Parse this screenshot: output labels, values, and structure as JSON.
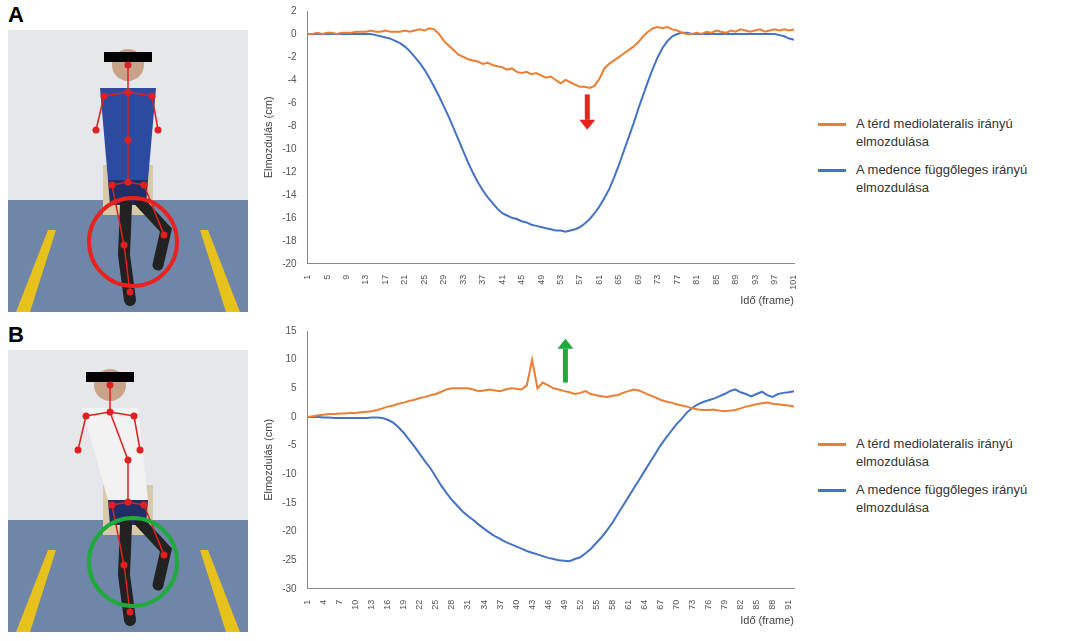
{
  "panels": [
    "A",
    "B"
  ],
  "chart_data": [
    {
      "type": "line",
      "x_label": "Idő (frame)",
      "y_label": "Elmozdulás (cm)",
      "x": [
        1,
        2,
        3,
        4,
        5,
        6,
        7,
        8,
        9,
        10,
        11,
        12,
        13,
        14,
        15,
        16,
        17,
        18,
        19,
        20,
        21,
        22,
        23,
        24,
        25,
        26,
        27,
        28,
        29,
        30,
        31,
        32,
        33,
        34,
        35,
        36,
        37,
        38,
        39,
        40,
        41,
        42,
        43,
        44,
        45,
        46,
        47,
        48,
        49,
        50,
        51,
        52,
        53,
        54,
        55,
        56,
        57,
        58,
        59,
        60,
        61,
        62,
        63,
        64,
        65,
        66,
        67,
        68,
        69,
        70,
        71,
        72,
        73,
        74,
        75,
        76,
        77,
        78,
        79,
        80,
        81,
        82,
        83,
        84,
        85,
        86,
        87,
        88,
        89,
        90,
        91,
        92,
        93,
        94,
        95,
        96,
        97,
        98,
        99,
        100,
        101
      ],
      "xlim": [
        1,
        101
      ],
      "xticks": [
        1,
        5,
        9,
        13,
        17,
        21,
        25,
        29,
        33,
        37,
        41,
        45,
        49,
        53,
        57,
        61,
        65,
        69,
        73,
        77,
        81,
        85,
        89,
        93,
        97,
        101
      ],
      "ylim": [
        -20,
        2
      ],
      "yticks": [
        -20,
        -18,
        -16,
        -14,
        -12,
        -10,
        -8,
        -6,
        -4,
        -2,
        0,
        2
      ],
      "grid": false,
      "legend": "right",
      "series": [
        {
          "name": "A térd mediolateralis irányú elmozdulása",
          "color": "#ed7d31",
          "values": [
            0,
            0,
            0.1,
            0,
            0.1,
            0.1,
            0,
            0.1,
            0.1,
            0.1,
            0.2,
            0.2,
            0.2,
            0.3,
            0.2,
            0.2,
            0.3,
            0.2,
            0.2,
            0.2,
            0.3,
            0.2,
            0.3,
            0.4,
            0.3,
            0.5,
            0.4,
            0,
            -0.6,
            -1,
            -1.4,
            -1.8,
            -2,
            -2.2,
            -2.3,
            -2.4,
            -2.6,
            -2.5,
            -2.7,
            -2.8,
            -2.9,
            -3.1,
            -3,
            -3.3,
            -3.4,
            -3.3,
            -3.5,
            -3.4,
            -3.6,
            -3.8,
            -3.7,
            -4,
            -4.3,
            -4,
            -4.2,
            -4.4,
            -4.6,
            -4.6,
            -4.7,
            -4.5,
            -3.9,
            -3,
            -2.6,
            -2.3,
            -2,
            -1.7,
            -1.4,
            -1.1,
            -0.7,
            -0.2,
            0.2,
            0.5,
            0.6,
            0.5,
            0.6,
            0.4,
            0.3,
            0.1,
            0,
            0,
            0.1,
            0,
            0.2,
            0.1,
            0.3,
            0.2,
            0.1,
            0.3,
            0.2,
            0.4,
            0.3,
            0.2,
            0.3,
            0.4,
            0.2,
            0.3,
            0.4,
            0.3,
            0.4,
            0.3,
            0.4
          ]
        },
        {
          "name": "A medence függőleges irányú elmozdulása",
          "color": "#4472c4",
          "values": [
            0,
            0,
            0,
            0,
            0,
            0,
            0,
            0,
            0,
            0,
            0,
            0,
            0,
            0,
            -0.1,
            -0.2,
            -0.3,
            -0.4,
            -0.6,
            -0.8,
            -1.1,
            -1.5,
            -2,
            -2.5,
            -3.1,
            -3.8,
            -4.6,
            -5.4,
            -6.3,
            -7.2,
            -8.2,
            -9.2,
            -10.2,
            -11.2,
            -12.1,
            -12.9,
            -13.6,
            -14.2,
            -14.7,
            -15.2,
            -15.6,
            -15.8,
            -16,
            -16.1,
            -16.3,
            -16.4,
            -16.6,
            -16.7,
            -16.8,
            -16.9,
            -17,
            -17.1,
            -17.1,
            -17.2,
            -17.1,
            -17,
            -16.8,
            -16.5,
            -16.1,
            -15.6,
            -15,
            -14.3,
            -13.5,
            -12.5,
            -11.4,
            -10.2,
            -9,
            -7.8,
            -6.5,
            -5.3,
            -4.1,
            -3,
            -2,
            -1.2,
            -0.6,
            -0.2,
            0,
            0.1,
            0.1,
            0,
            0,
            0,
            0,
            0,
            0,
            0,
            0,
            0,
            0,
            0,
            0,
            0,
            0,
            0,
            0,
            0,
            0,
            -0.1,
            -0.2,
            -0.4,
            -0.5
          ]
        }
      ]
    },
    {
      "type": "line",
      "x_label": "Idő (frame)",
      "y_label": "Elmozdulás (cm)",
      "x": [
        1,
        2,
        3,
        4,
        5,
        6,
        7,
        8,
        9,
        10,
        11,
        12,
        13,
        14,
        15,
        16,
        17,
        18,
        19,
        20,
        21,
        22,
        23,
        24,
        25,
        26,
        27,
        28,
        29,
        30,
        31,
        32,
        33,
        34,
        35,
        36,
        37,
        38,
        39,
        40,
        41,
        42,
        43,
        44,
        45,
        46,
        47,
        48,
        49,
        50,
        51,
        52,
        53,
        54,
        55,
        56,
        57,
        58,
        59,
        60,
        61,
        62,
        63,
        64,
        65,
        66,
        67,
        68,
        69,
        70,
        71,
        72,
        73,
        74,
        75,
        76,
        77,
        78,
        79,
        80,
        81,
        82,
        83,
        84,
        85,
        86,
        87,
        88,
        89,
        90,
        91,
        92
      ],
      "xlim": [
        1,
        92
      ],
      "xticks": [
        1,
        4,
        7,
        10,
        13,
        16,
        19,
        22,
        25,
        28,
        31,
        34,
        37,
        40,
        43,
        46,
        49,
        52,
        55,
        58,
        61,
        64,
        67,
        70,
        73,
        76,
        79,
        82,
        85,
        88,
        91
      ],
      "ylim": [
        -30,
        15
      ],
      "yticks": [
        -30,
        -25,
        -20,
        -15,
        -10,
        -5,
        0,
        5,
        10,
        15
      ],
      "grid": false,
      "legend": "right",
      "series": [
        {
          "name": "A térd mediolateralis irányú elmozdulása",
          "color": "#ed7d31",
          "values": [
            0,
            0.1,
            0.3,
            0.4,
            0.5,
            0.5,
            0.6,
            0.6,
            0.7,
            0.7,
            0.8,
            0.9,
            1,
            1.2,
            1.5,
            1.8,
            2,
            2.3,
            2.5,
            2.8,
            3,
            3.3,
            3.5,
            3.8,
            4,
            4.4,
            4.8,
            5,
            5,
            5,
            5,
            4.8,
            4.5,
            4.6,
            4.8,
            4.6,
            4.5,
            4.8,
            5,
            4.9,
            4.8,
            5.5,
            10,
            5,
            6,
            5.5,
            5,
            4.8,
            4.5,
            4.3,
            4,
            4.2,
            4.5,
            4,
            3.8,
            3.6,
            3.5,
            3.7,
            3.8,
            4.2,
            4.5,
            4.8,
            4.6,
            4.2,
            3.8,
            3.4,
            3,
            2.7,
            2.5,
            2.2,
            2,
            1.8,
            1.5,
            1.3,
            1.2,
            1.2,
            1.3,
            1.1,
            1,
            1.1,
            1.2,
            1.5,
            1.8,
            2,
            2.2,
            2.4,
            2.5,
            2.3,
            2.2,
            2.1,
            2,
            1.8
          ]
        },
        {
          "name": "A medence függőleges irányú elmozdulása",
          "color": "#4472c4",
          "values": [
            0,
            0,
            0,
            -0.1,
            -0.1,
            -0.2,
            -0.2,
            -0.2,
            -0.2,
            -0.2,
            -0.2,
            -0.2,
            -0.1,
            -0.1,
            -0.2,
            -0.5,
            -1,
            -1.8,
            -2.8,
            -4,
            -5.2,
            -6.5,
            -7.8,
            -9,
            -10.5,
            -12,
            -13.3,
            -14.5,
            -15.5,
            -16.5,
            -17.3,
            -18,
            -18.8,
            -19.5,
            -20.2,
            -20.8,
            -21.3,
            -21.8,
            -22.2,
            -22.6,
            -23,
            -23.4,
            -23.7,
            -24,
            -24.3,
            -24.6,
            -24.8,
            -25,
            -25.1,
            -25.2,
            -24.8,
            -24.5,
            -23.8,
            -23,
            -22,
            -21,
            -19.8,
            -18.5,
            -17,
            -15.5,
            -14,
            -12.5,
            -11,
            -9.5,
            -8,
            -6.5,
            -5,
            -3.7,
            -2.5,
            -1.3,
            -0.3,
            0.8,
            1.6,
            2.2,
            2.6,
            2.9,
            3.2,
            3.6,
            4,
            4.5,
            4.8,
            4.3,
            4,
            3.6,
            4,
            4.4,
            3.8,
            3.5,
            4,
            4.2,
            4.3,
            4.5
          ]
        }
      ]
    }
  ]
}
